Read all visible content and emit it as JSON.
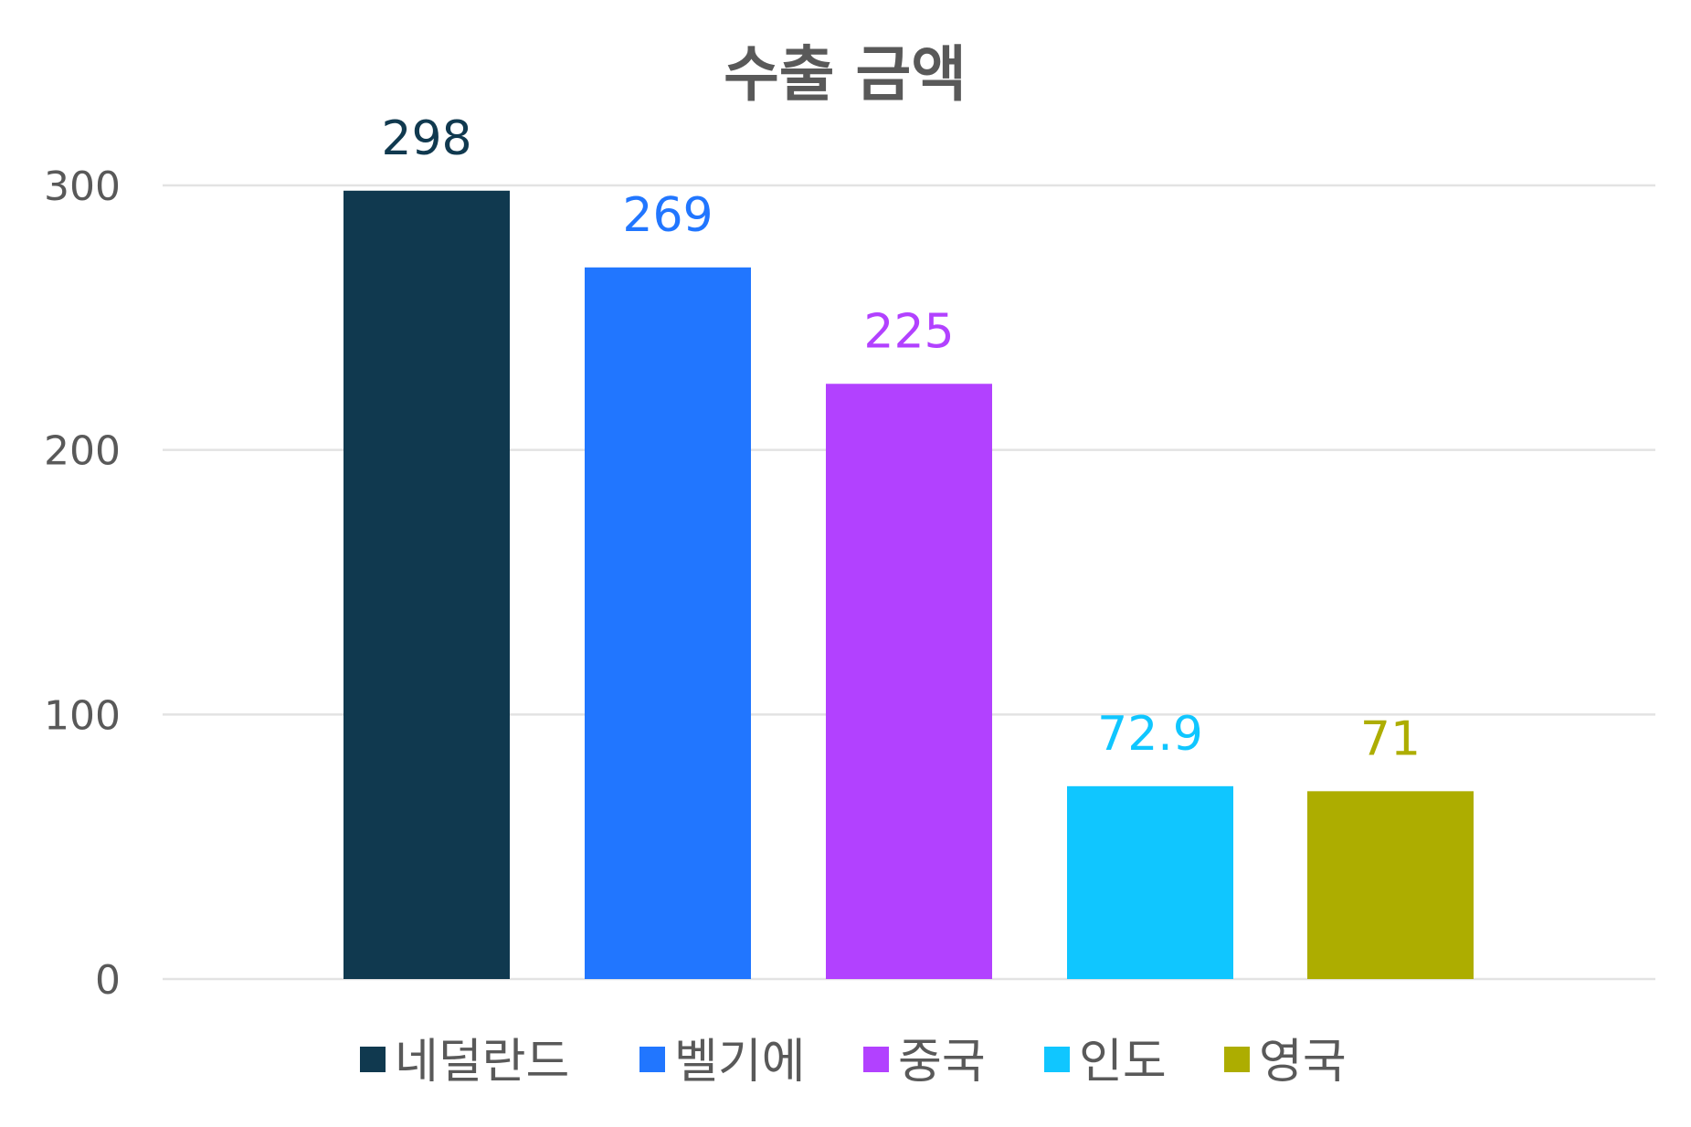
{
  "chart_data": {
    "type": "bar",
    "title": "수출 금액",
    "xlabel": "",
    "ylabel": "",
    "ylim": [
      0,
      300
    ],
    "yticks": [
      0,
      100,
      200,
      300
    ],
    "grid": true,
    "legend_position": "bottom",
    "categories": [
      "네덜란드",
      "벨기에",
      "중국",
      "인도",
      "영국"
    ],
    "values": [
      298,
      269,
      225,
      72.9,
      71
    ],
    "value_labels": [
      "298",
      "269",
      "225",
      "72.9",
      "71"
    ],
    "colors": [
      "#10394f",
      "#2176ff",
      "#b241ff",
      "#10c6ff",
      "#adad00"
    ]
  }
}
